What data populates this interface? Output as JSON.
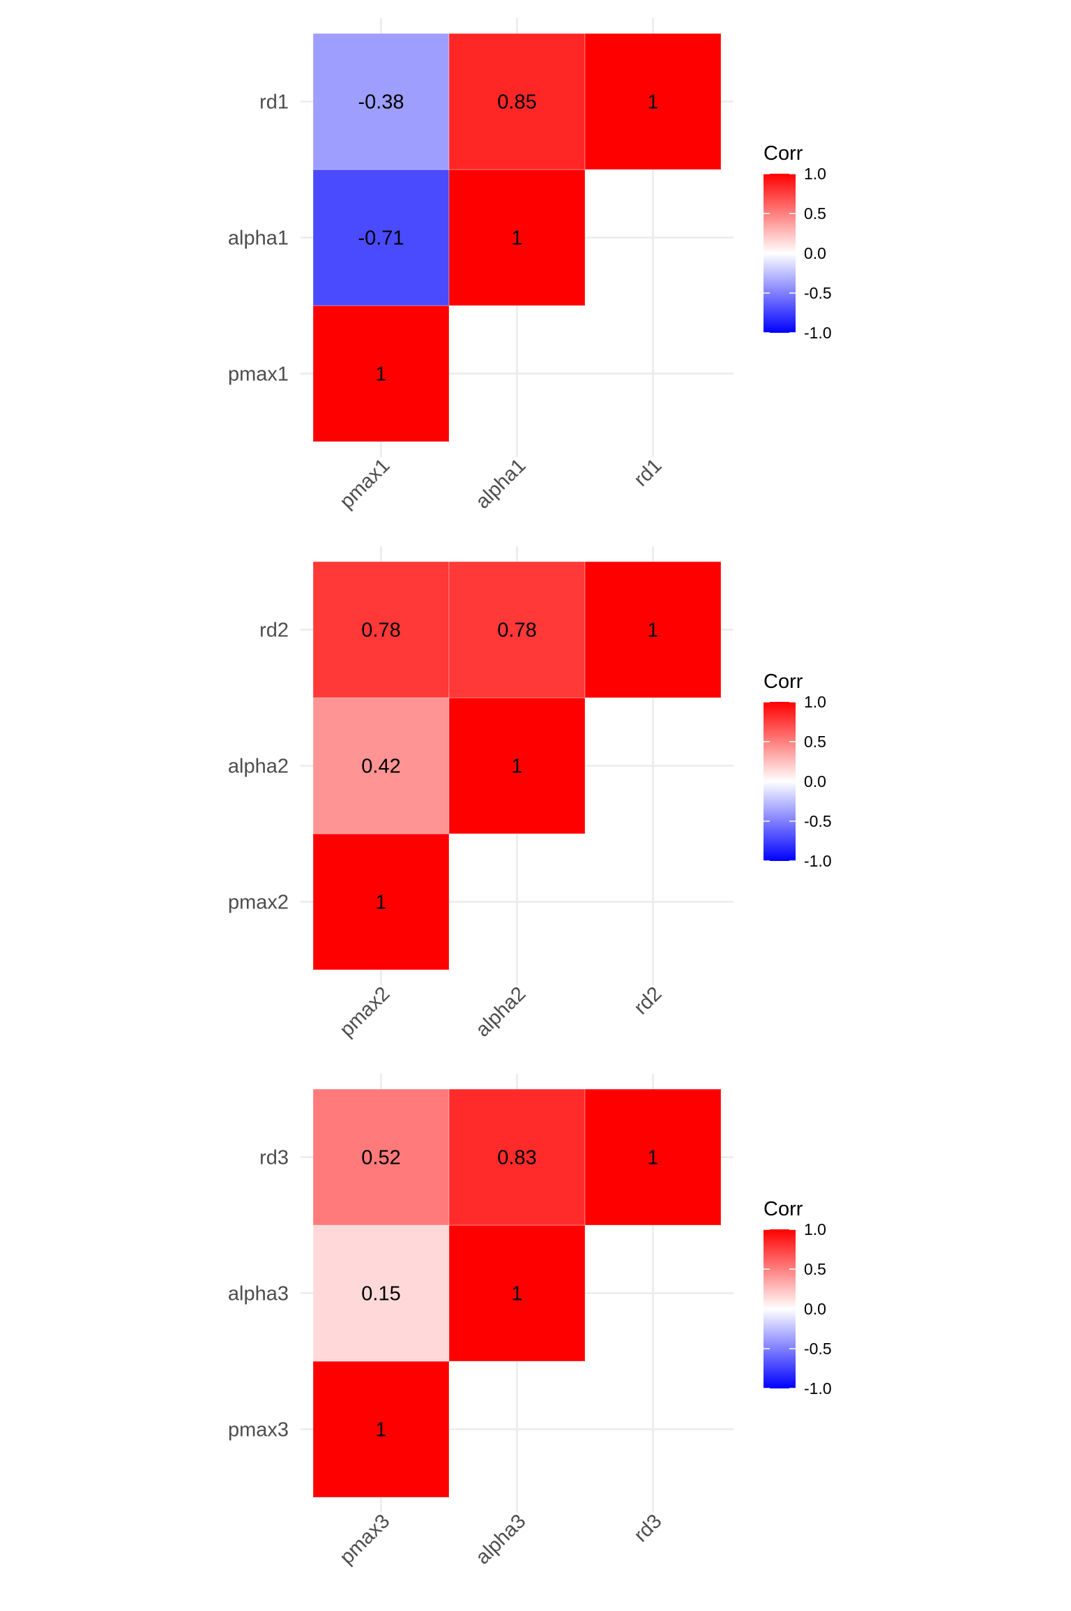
{
  "colors": {
    "low": "#0000FF",
    "mid": "#FFFFFF",
    "high": "#FF0000",
    "grid": "#EBEBEB",
    "axis_text": "#4D4D4D"
  },
  "chart_data": [
    {
      "type": "heatmap",
      "variables": [
        "pmax1",
        "alpha1",
        "rd1"
      ],
      "cells": [
        {
          "x": "pmax1",
          "y": "pmax1",
          "value": 1,
          "label": "1"
        },
        {
          "x": "pmax1",
          "y": "alpha1",
          "value": -0.71,
          "label": "-0.71"
        },
        {
          "x": "pmax1",
          "y": "rd1",
          "value": -0.38,
          "label": "-0.38"
        },
        {
          "x": "alpha1",
          "y": "alpha1",
          "value": 1,
          "label": "1"
        },
        {
          "x": "alpha1",
          "y": "rd1",
          "value": 0.85,
          "label": "0.85"
        },
        {
          "x": "rd1",
          "y": "rd1",
          "value": 1,
          "label": "1"
        }
      ],
      "legend": {
        "title": "Corr",
        "ticks": [
          "1.0",
          "0.5",
          "0.0",
          "-0.5",
          "-1.0"
        ],
        "range": [
          -1,
          1
        ]
      }
    },
    {
      "type": "heatmap",
      "variables": [
        "pmax2",
        "alpha2",
        "rd2"
      ],
      "cells": [
        {
          "x": "pmax2",
          "y": "pmax2",
          "value": 1,
          "label": "1"
        },
        {
          "x": "pmax2",
          "y": "alpha2",
          "value": 0.42,
          "label": "0.42"
        },
        {
          "x": "pmax2",
          "y": "rd2",
          "value": 0.78,
          "label": "0.78"
        },
        {
          "x": "alpha2",
          "y": "alpha2",
          "value": 1,
          "label": "1"
        },
        {
          "x": "alpha2",
          "y": "rd2",
          "value": 0.78,
          "label": "0.78"
        },
        {
          "x": "rd2",
          "y": "rd2",
          "value": 1,
          "label": "1"
        }
      ],
      "legend": {
        "title": "Corr",
        "ticks": [
          "1.0",
          "0.5",
          "0.0",
          "-0.5",
          "-1.0"
        ],
        "range": [
          -1,
          1
        ]
      }
    },
    {
      "type": "heatmap",
      "variables": [
        "pmax3",
        "alpha3",
        "rd3"
      ],
      "cells": [
        {
          "x": "pmax3",
          "y": "pmax3",
          "value": 1,
          "label": "1"
        },
        {
          "x": "pmax3",
          "y": "alpha3",
          "value": 0.15,
          "label": "0.15"
        },
        {
          "x": "pmax3",
          "y": "rd3",
          "value": 0.52,
          "label": "0.52"
        },
        {
          "x": "alpha3",
          "y": "alpha3",
          "value": 1,
          "label": "1"
        },
        {
          "x": "alpha3",
          "y": "rd3",
          "value": 0.83,
          "label": "0.83"
        },
        {
          "x": "rd3",
          "y": "rd3",
          "value": 1,
          "label": "1"
        }
      ],
      "legend": {
        "title": "Corr",
        "ticks": [
          "1.0",
          "0.5",
          "0.0",
          "-0.5",
          "-1.0"
        ],
        "range": [
          -1,
          1
        ]
      }
    }
  ]
}
